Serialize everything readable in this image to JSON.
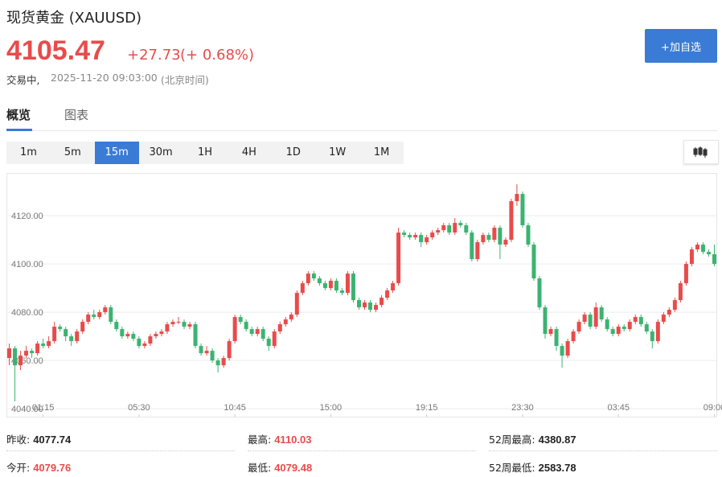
{
  "header": {
    "name": "现货黄金",
    "symbol": "(XAUUSD)",
    "price": "4105.47",
    "change": "+27.73",
    "change_pct": "(+ 0.68%)",
    "status": "交易中,",
    "datetime": "2025-11-20 09:03:00",
    "timezone": "(北京时间)",
    "button": "+加自选"
  },
  "tabs": [
    "概览",
    "图表"
  ],
  "intervals": [
    "1m",
    "5m",
    "15m",
    "30m",
    "1H",
    "4H",
    "1D",
    "1W",
    "1M"
  ],
  "chart_data": {
    "type": "candlestick",
    "up_color": "#e84b4b",
    "down_color": "#3cb371",
    "grid": true,
    "ylim": [
      4036.7,
      4137.7
    ],
    "yticks": [
      {
        "value": 4040,
        "label": "4040.00"
      },
      {
        "value": 4060,
        "label": "4060.00"
      },
      {
        "value": 4080,
        "label": "4080.00"
      },
      {
        "value": 4100,
        "label": "4100.00"
      },
      {
        "value": 4120,
        "label": "4120.00"
      }
    ],
    "xticks": [
      {
        "value": 6,
        "label": "01:15"
      },
      {
        "value": 23,
        "label": "05:30"
      },
      {
        "value": 40,
        "label": "10:45"
      },
      {
        "value": 57,
        "label": "15:00"
      },
      {
        "value": 74,
        "label": "19:15"
      },
      {
        "value": 91,
        "label": "23:30"
      },
      {
        "value": 108,
        "label": "03:45"
      },
      {
        "value": 125,
        "label": "09:00"
      }
    ],
    "candles": [
      [
        4061,
        4067,
        4058,
        4065
      ],
      [
        4065,
        4066,
        4043,
        4058
      ],
      [
        4058,
        4064,
        4056,
        4062
      ],
      [
        4062,
        4066,
        4061,
        4064
      ],
      [
        4064,
        4065,
        4061,
        4063
      ],
      [
        4063,
        4068,
        4062,
        4067
      ],
      [
        4067,
        4069,
        4065,
        4066
      ],
      [
        4066,
        4070,
        4065,
        4068
      ],
      [
        4068,
        4076,
        4067,
        4074
      ],
      [
        4074,
        4075,
        4072,
        4073
      ],
      [
        4073,
        4074,
        4068,
        4070
      ],
      [
        4070,
        4071,
        4066,
        4068
      ],
      [
        4068,
        4073,
        4067,
        4072
      ],
      [
        4072,
        4077,
        4071,
        4076
      ],
      [
        4076,
        4080,
        4075,
        4079
      ],
      [
        4079,
        4081,
        4077,
        4078
      ],
      [
        4078,
        4081,
        4077,
        4080
      ],
      [
        4080,
        4083,
        4079,
        4082
      ],
      [
        4082,
        4083,
        4075,
        4076
      ],
      [
        4076,
        4077,
        4072,
        4073
      ],
      [
        4073,
        4074,
        4069,
        4070
      ],
      [
        4070,
        4072,
        4069,
        4071
      ],
      [
        4071,
        4072,
        4068,
        4069
      ],
      [
        4069,
        4070,
        4065,
        4066
      ],
      [
        4066,
        4068,
        4065,
        4067
      ],
      [
        4067,
        4071,
        4066,
        4070
      ],
      [
        4070,
        4072,
        4069,
        4071
      ],
      [
        4071,
        4073,
        4070,
        4072
      ],
      [
        4072,
        4076,
        4071,
        4075
      ],
      [
        4075,
        4077,
        4074,
        4076
      ],
      [
        4076,
        4078,
        4075,
        4076
      ],
      [
        4076,
        4077,
        4073,
        4074
      ],
      [
        4074,
        4076,
        4073,
        4075
      ],
      [
        4075,
        4076,
        4065,
        4066
      ],
      [
        4066,
        4067,
        4062,
        4063
      ],
      [
        4063,
        4066,
        4062,
        4064
      ],
      [
        4064,
        4065,
        4059,
        4060
      ],
      [
        4060,
        4061,
        4055,
        4058
      ],
      [
        4058,
        4062,
        4057,
        4061
      ],
      [
        4061,
        4069,
        4060,
        4068
      ],
      [
        4068,
        4079,
        4067,
        4078
      ],
      [
        4078,
        4079,
        4075,
        4076
      ],
      [
        4076,
        4077,
        4072,
        4073
      ],
      [
        4073,
        4074,
        4070,
        4071
      ],
      [
        4071,
        4074,
        4070,
        4073
      ],
      [
        4073,
        4074,
        4068,
        4069
      ],
      [
        4069,
        4070,
        4064,
        4066
      ],
      [
        4066,
        4073,
        4065,
        4072
      ],
      [
        4072,
        4076,
        4071,
        4075
      ],
      [
        4075,
        4078,
        4074,
        4077
      ],
      [
        4077,
        4080,
        4076,
        4079
      ],
      [
        4079,
        4089,
        4078,
        4088
      ],
      [
        4088,
        4093,
        4087,
        4092
      ],
      [
        4092,
        4097,
        4091,
        4096
      ],
      [
        4096,
        4097,
        4093,
        4094
      ],
      [
        4094,
        4095,
        4091,
        4092
      ],
      [
        4092,
        4093,
        4089,
        4090
      ],
      [
        4090,
        4094,
        4089,
        4093
      ],
      [
        4093,
        4094,
        4088,
        4089
      ],
      [
        4089,
        4090,
        4087,
        4088
      ],
      [
        4088,
        4097,
        4087,
        4096
      ],
      [
        4096,
        4097,
        4084,
        4085
      ],
      [
        4085,
        4086,
        4081,
        4082
      ],
      [
        4082,
        4085,
        4081,
        4084
      ],
      [
        4084,
        4085,
        4080,
        4081
      ],
      [
        4081,
        4084,
        4080,
        4083
      ],
      [
        4083,
        4087,
        4082,
        4086
      ],
      [
        4086,
        4090,
        4085,
        4089
      ],
      [
        4089,
        4093,
        4088,
        4092
      ],
      [
        4092,
        4115,
        4091,
        4113
      ],
      [
        4113,
        4114,
        4111,
        4112
      ],
      [
        4112,
        4113,
        4110,
        4111
      ],
      [
        4111,
        4113,
        4110,
        4112
      ],
      [
        4112,
        4113,
        4107,
        4109
      ],
      [
        4109,
        4112,
        4108,
        4111
      ],
      [
        4111,
        4114,
        4110,
        4113
      ],
      [
        4113,
        4115,
        4112,
        4114
      ],
      [
        4114,
        4117,
        4113,
        4116
      ],
      [
        4116,
        4117,
        4112,
        4113
      ],
      [
        4113,
        4119,
        4112,
        4117
      ],
      [
        4117,
        4118,
        4115,
        4116
      ],
      [
        4116,
        4117,
        4112,
        4113
      ],
      [
        4113,
        4114,
        4101,
        4102
      ],
      [
        4102,
        4110,
        4101,
        4109
      ],
      [
        4109,
        4113,
        4108,
        4112
      ],
      [
        4112,
        4113,
        4109,
        4110
      ],
      [
        4110,
        4116,
        4109,
        4115
      ],
      [
        4115,
        4116,
        4102,
        4108
      ],
      [
        4108,
        4111,
        4107,
        4110
      ],
      [
        4110,
        4127,
        4109,
        4126
      ],
      [
        4126,
        4133,
        4124,
        4129
      ],
      [
        4129,
        4130,
        4115,
        4116
      ],
      [
        4116,
        4117,
        4107,
        4108
      ],
      [
        4108,
        4109,
        4093,
        4094
      ],
      [
        4094,
        4095,
        4081,
        4082
      ],
      [
        4082,
        4083,
        4069,
        4071
      ],
      [
        4071,
        4074,
        4070,
        4073
      ],
      [
        4073,
        4074,
        4064,
        4066
      ],
      [
        4066,
        4067,
        4057,
        4062
      ],
      [
        4062,
        4069,
        4061,
        4068
      ],
      [
        4068,
        4073,
        4067,
        4072
      ],
      [
        4072,
        4077,
        4071,
        4076
      ],
      [
        4076,
        4080,
        4075,
        4079
      ],
      [
        4079,
        4080,
        4073,
        4074
      ],
      [
        4074,
        4084,
        4073,
        4082
      ],
      [
        4082,
        4083,
        4076,
        4077
      ],
      [
        4077,
        4078,
        4072,
        4073
      ],
      [
        4073,
        4074,
        4070,
        4071
      ],
      [
        4071,
        4075,
        4070,
        4074
      ],
      [
        4074,
        4075,
        4072,
        4073
      ],
      [
        4073,
        4077,
        4072,
        4076
      ],
      [
        4076,
        4079,
        4075,
        4078
      ],
      [
        4078,
        4079,
        4074,
        4075
      ],
      [
        4075,
        4076,
        4071,
        4072
      ],
      [
        4072,
        4073,
        4065,
        4068
      ],
      [
        4068,
        4077,
        4067,
        4076
      ],
      [
        4076,
        4080,
        4075,
        4079
      ],
      [
        4079,
        4082,
        4078,
        4081
      ],
      [
        4081,
        4086,
        4080,
        4085
      ],
      [
        4085,
        4093,
        4084,
        4092
      ],
      [
        4092,
        4101,
        4091,
        4100
      ],
      [
        4100,
        4107,
        4099,
        4106
      ],
      [
        4106,
        4109,
        4105,
        4108
      ],
      [
        4108,
        4109,
        4104,
        4105
      ],
      [
        4105,
        4106,
        4103,
        4104
      ],
      [
        4104,
        4108,
        4099,
        4100
      ]
    ]
  },
  "stats": [
    {
      "label": "昨收:",
      "value": "4077.74"
    },
    {
      "label": "最高:",
      "value": "4110.03"
    },
    {
      "label": "52周最高:",
      "value": "4380.87"
    },
    {
      "label": "今开:",
      "value": "4079.76"
    },
    {
      "label": "最低:",
      "value": "4079.48"
    },
    {
      "label": "52周最低:",
      "value": "2583.78"
    }
  ]
}
